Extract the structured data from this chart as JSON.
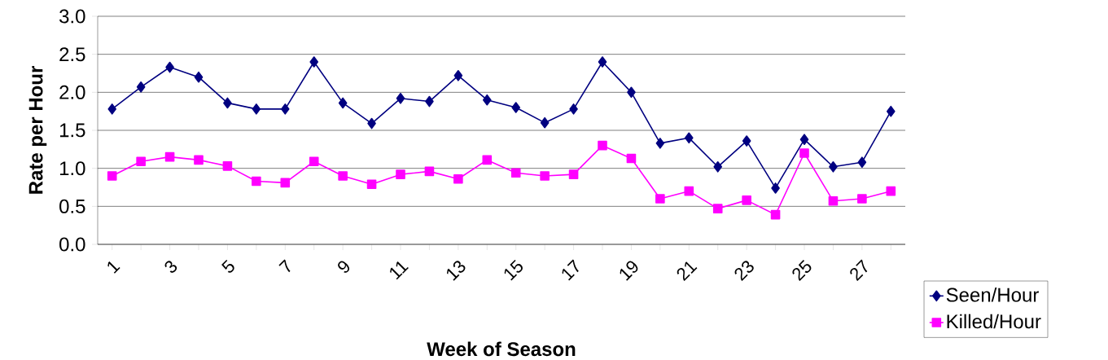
{
  "chart_data": {
    "type": "line",
    "xlabel": "Week of Season",
    "ylabel": "Rate per Hour",
    "categories": [
      "1",
      null,
      "3",
      null,
      "5",
      null,
      "7",
      null,
      "9",
      null,
      "11",
      null,
      "13",
      null,
      "15",
      null,
      "17",
      null,
      "19",
      null,
      "21",
      null,
      "23",
      null,
      "25",
      null,
      "27",
      null
    ],
    "series": [
      {
        "name": "Seen/Hour",
        "color": "#000080",
        "marker": "diamond",
        "values": [
          1.78,
          2.07,
          2.33,
          2.2,
          1.86,
          1.78,
          1.78,
          2.4,
          1.86,
          1.59,
          1.92,
          1.88,
          2.22,
          1.9,
          1.8,
          1.6,
          1.78,
          2.4,
          2.0,
          1.33,
          1.4,
          1.02,
          1.36,
          0.74,
          1.38,
          1.02,
          1.08,
          1.75
        ]
      },
      {
        "name": "Killed/Hour",
        "color": "#ff00ff",
        "marker": "square",
        "values": [
          0.9,
          1.09,
          1.15,
          1.11,
          1.03,
          0.83,
          0.81,
          1.09,
          0.9,
          0.79,
          0.92,
          0.96,
          0.86,
          1.11,
          0.94,
          0.9,
          0.92,
          1.3,
          1.13,
          0.6,
          0.7,
          0.47,
          0.58,
          0.39,
          1.2,
          0.57,
          0.6,
          0.7
        ]
      }
    ],
    "ylim": [
      0,
      3
    ],
    "yticks": [
      {
        "value": 0,
        "label": "0.0"
      },
      {
        "value": 0.5,
        "label": "0.5"
      },
      {
        "value": 1,
        "label": "1.0"
      },
      {
        "value": 1.5,
        "label": "1.5"
      },
      {
        "value": 2,
        "label": "2.0"
      },
      {
        "value": 2.5,
        "label": "2.5"
      },
      {
        "value": 3,
        "label": "3.0"
      }
    ],
    "grid": "y",
    "legend": "bottom right",
    "line_style": "solid"
  }
}
